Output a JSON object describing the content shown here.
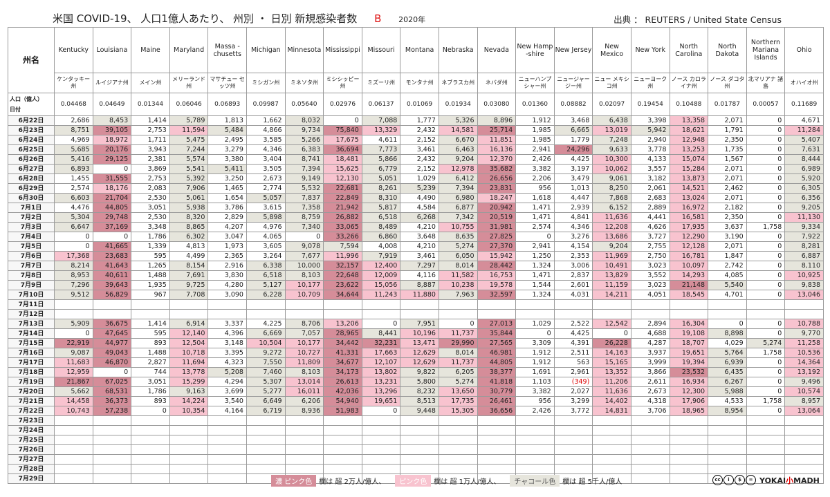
{
  "header": {
    "title": "米国  COVID-19、 人口1億人あたり、 州別 ・ 日別  新規感染者数",
    "mark": "B",
    "year": "2020年",
    "source": "出典 ：  REUTERS  /  United State Census"
  },
  "labels": {
    "state_col": "州名",
    "pop_label": "人口（億人）",
    "date_label": "日付"
  },
  "states": [
    {
      "en": "Kentucky",
      "ja": "ケンタッキー州",
      "pop": "0.04468"
    },
    {
      "en": "Louisiana",
      "ja": "ルイジアナ州",
      "pop": "0.04649"
    },
    {
      "en": "Maine",
      "ja": "メイン州",
      "pop": "0.01344"
    },
    {
      "en": "Maryland",
      "ja": "メリーランド州",
      "pop": "0.06046"
    },
    {
      "en": "Massa -chusetts",
      "ja": "マサチュー セッツ州",
      "pop": "0.06893"
    },
    {
      "en": "Michigan",
      "ja": "ミシガン州",
      "pop": "0.09987"
    },
    {
      "en": "Minnesota",
      "ja": "ミネソタ州",
      "pop": "0.05640"
    },
    {
      "en": "Mississippi",
      "ja": "ミシシッピー州",
      "pop": "0.02976"
    },
    {
      "en": "Missouri",
      "ja": "ミズーリ州",
      "pop": "0.06137"
    },
    {
      "en": "Montana",
      "ja": "モンタナ州",
      "pop": "0.01069"
    },
    {
      "en": "Nebraska",
      "ja": "ネブラスカ州",
      "pop": "0.01934"
    },
    {
      "en": "Nevada",
      "ja": "ネバダ州",
      "pop": "0.03080"
    },
    {
      "en": "New Hamp -shire",
      "ja": "ニューハンプ シャー州",
      "pop": "0.01360"
    },
    {
      "en": "New Jersey",
      "ja": "ニュージャー ジー州",
      "pop": "0.08882"
    },
    {
      "en": "New Mexico",
      "ja": "ニュー メキシコ州",
      "pop": "0.02097"
    },
    {
      "en": "New York",
      "ja": "ニューヨーク州",
      "pop": "0.19454"
    },
    {
      "en": "North Carolina",
      "ja": "ノース カロライナ州",
      "pop": "0.10488"
    },
    {
      "en": "North Dakota",
      "ja": "ノース ダコタ州",
      "pop": "0.01787"
    },
    {
      "en": "Northern Mariana Islands",
      "ja": "北マリアナ 諸島",
      "pop": "0.00057"
    },
    {
      "en": "Ohio",
      "ja": "オハイオ州",
      "pop": "0.11689"
    }
  ],
  "dates": [
    "6月22日",
    "6月23日",
    "6月24日",
    "6月25日",
    "6月26日",
    "6月27日",
    "6月28日",
    "6月29日",
    "6月30日",
    "7月1日",
    "7月2日",
    "7月3日",
    "7月4日",
    "7月5日",
    "7月6日",
    "7月7日",
    "7月8日",
    "7月9日",
    "7月10日",
    "7月11日",
    "7月12日",
    "7月13日",
    "7月14日",
    "7月15日",
    "7月16日",
    "7月17日",
    "7月18日",
    "7月19日",
    "7月20日",
    "7月21日",
    "7月22日",
    "7月23日",
    "7月24日",
    "7月25日",
    "7月26日",
    "7月27日",
    "7月28日",
    "7月29日"
  ],
  "rows": [
    [
      "2,686",
      "8,453",
      "1,414",
      "5,789",
      "1,813",
      "1,662",
      "8,032",
      "0",
      "7,088",
      "1,777",
      "5,326",
      "8,896",
      "1,912",
      "3,468",
      "6,438",
      "3,398",
      "13,358",
      "2,071",
      "0",
      "4,671"
    ],
    [
      "8,751",
      "39,105",
      "2,753",
      "11,594",
      "5,484",
      "4,866",
      "9,734",
      "75,840",
      "13,329",
      "2,432",
      "14,581",
      "25,714",
      "1,985",
      "6,665",
      "13,019",
      "5,942",
      "18,621",
      "1,791",
      "0",
      "11,284"
    ],
    [
      "4,969",
      "18,972",
      "1,711",
      "5,475",
      "2,495",
      "3,585",
      "5,266",
      "17,675",
      "4,611",
      "2,152",
      "6,670",
      "11,851",
      "1,985",
      "1,779",
      "7,248",
      "2,940",
      "12,948",
      "2,350",
      "0",
      "5,407"
    ],
    [
      "5,685",
      "20,176",
      "3,943",
      "7,244",
      "3,279",
      "4,346",
      "6,383",
      "36,694",
      "7,773",
      "3,461",
      "6,463",
      "16,136",
      "2,941",
      "24,296",
      "9,633",
      "3,778",
      "13,253",
      "1,735",
      "0",
      "7,631"
    ],
    [
      "5,416",
      "29,125",
      "2,381",
      "5,574",
      "3,380",
      "3,404",
      "8,741",
      "18,481",
      "5,866",
      "2,432",
      "9,204",
      "12,370",
      "2,426",
      "4,425",
      "10,300",
      "4,133",
      "15,074",
      "1,567",
      "0",
      "8,444"
    ],
    [
      "6,893",
      "0",
      "3,869",
      "5,541",
      "5,411",
      "3,505",
      "7,394",
      "15,625",
      "6,779",
      "2,152",
      "12,978",
      "35,682",
      "3,382",
      "3,197",
      "10,062",
      "3,557",
      "15,284",
      "2,071",
      "0",
      "6,989"
    ],
    [
      "1,455",
      "31,555",
      "2,753",
      "5,392",
      "3,250",
      "2,673",
      "9,149",
      "12,130",
      "5,051",
      "1,029",
      "6,412",
      "26,656",
      "2,206",
      "3,479",
      "9,061",
      "3,182",
      "13,873",
      "2,071",
      "0",
      "5,920"
    ],
    [
      "2,574",
      "18,176",
      "2,083",
      "7,906",
      "1,465",
      "2,774",
      "5,532",
      "22,681",
      "8,261",
      "5,239",
      "7,394",
      "23,831",
      "956",
      "1,013",
      "8,250",
      "2,061",
      "14,521",
      "2,462",
      "0",
      "6,305"
    ],
    [
      "6,603",
      "21,704",
      "2,530",
      "5,061",
      "1,654",
      "5,057",
      "7,837",
      "22,849",
      "8,310",
      "4,490",
      "6,980",
      "18,247",
      "1,618",
      "4,447",
      "7,868",
      "2,683",
      "13,024",
      "2,071",
      "0",
      "6,356"
    ],
    [
      "4,476",
      "44,805",
      "3,051",
      "5,938",
      "3,786",
      "3,615",
      "7,358",
      "21,942",
      "5,817",
      "4,584",
      "6,877",
      "20,942",
      "1,471",
      "2,939",
      "6,152",
      "2,889",
      "16,972",
      "2,182",
      "0",
      "9,205"
    ],
    [
      "5,304",
      "29,748",
      "2,530",
      "8,320",
      "2,829",
      "5,898",
      "8,759",
      "26,882",
      "6,518",
      "6,268",
      "7,342",
      "20,519",
      "1,471",
      "4,841",
      "11,636",
      "4,441",
      "16,581",
      "2,350",
      "0",
      "11,130"
    ],
    [
      "6,647",
      "37,169",
      "3,348",
      "8,865",
      "4,207",
      "4,976",
      "7,340",
      "33,065",
      "8,489",
      "4,210",
      "10,755",
      "31,981",
      "2,574",
      "4,346",
      "12,208",
      "4,626",
      "17,935",
      "3,637",
      "1,758",
      "9,334"
    ],
    [
      "0",
      "0",
      "1,786",
      "6,302",
      "3,047",
      "4,065",
      "0",
      "33,266",
      "6,860",
      "3,648",
      "8,635",
      "27,825",
      "0",
      "3,276",
      "13,686",
      "3,727",
      "12,290",
      "3,190",
      "0",
      "7,922"
    ],
    [
      "0",
      "41,665",
      "1,339",
      "4,813",
      "1,973",
      "3,605",
      "9,078",
      "7,594",
      "4,008",
      "4,210",
      "5,274",
      "27,370",
      "2,941",
      "4,154",
      "9,204",
      "2,755",
      "12,128",
      "2,071",
      "0",
      "8,281"
    ],
    [
      "17,368",
      "23,683",
      "595",
      "4,499",
      "2,365",
      "3,264",
      "7,677",
      "11,996",
      "7,919",
      "3,461",
      "6,050",
      "15,942",
      "1,250",
      "2,353",
      "11,969",
      "2,750",
      "16,781",
      "1,847",
      "0",
      "6,887"
    ],
    [
      "8,214",
      "41,643",
      "1,265",
      "8,154",
      "2,916",
      "6,338",
      "10,000",
      "32,157",
      "12,400",
      "7,297",
      "8,014",
      "28,442",
      "1,324",
      "3,006",
      "10,491",
      "3,023",
      "10,097",
      "2,742",
      "0",
      "8,110"
    ],
    [
      "8,953",
      "40,611",
      "1,488",
      "7,691",
      "3,830",
      "6,518",
      "8,103",
      "22,648",
      "12,009",
      "4,116",
      "11,582",
      "16,753",
      "1,471",
      "2,837",
      "13,829",
      "3,552",
      "14,293",
      "4,085",
      "0",
      "10,925"
    ],
    [
      "7,296",
      "39,643",
      "1,935",
      "9,725",
      "4,280",
      "5,127",
      "10,177",
      "23,622",
      "15,056",
      "8,887",
      "10,238",
      "19,578",
      "1,544",
      "2,601",
      "11,159",
      "3,023",
      "21,148",
      "5,540",
      "0",
      "9,838"
    ],
    [
      "9,512",
      "56,829",
      "967",
      "7,708",
      "3,090",
      "6,228",
      "10,709",
      "34,644",
      "11,243",
      "11,880",
      "7,963",
      "32,597",
      "1,324",
      "4,031",
      "14,211",
      "4,051",
      "18,545",
      "4,701",
      "0",
      "13,046"
    ],
    [
      "",
      "",
      "",
      "",
      "",
      "",
      "",
      "",
      "",
      "",
      "",
      "",
      "",
      "",
      "",
      "",
      "",
      "",
      "",
      ""
    ],
    [
      "",
      "",
      "",
      "",
      "",
      "",
      "",
      "",
      "",
      "",
      "",
      "",
      "",
      "",
      "",
      "",
      "",
      "",
      "",
      ""
    ],
    [
      "5,909",
      "36,675",
      "1,414",
      "6,914",
      "3,337",
      "4,225",
      "8,706",
      "13,206",
      "0",
      "7,951",
      "0",
      "27,013",
      "1,029",
      "2,522",
      "12,542",
      "2,894",
      "16,304",
      "0",
      "0",
      "10,788"
    ],
    [
      "0",
      "47,645",
      "595",
      "12,140",
      "4,396",
      "6,669",
      "7,057",
      "28,965",
      "8,441",
      "10,196",
      "11,737",
      "35,844",
      "0",
      "4,425",
      "0",
      "4,688",
      "19,108",
      "8,898",
      "0",
      "9,770"
    ],
    [
      "22,919",
      "44,977",
      "893",
      "12,504",
      "3,148",
      "10,504",
      "10,177",
      "34,442",
      "32,231",
      "13,471",
      "29,990",
      "27,565",
      "3,309",
      "4,391",
      "26,228",
      "4,287",
      "18,707",
      "4,029",
      "5,274",
      "11,258"
    ],
    [
      "9,087",
      "49,043",
      "1,488",
      "10,718",
      "3,395",
      "9,272",
      "10,727",
      "41,331",
      "17,663",
      "12,629",
      "8,014",
      "46,981",
      "1,912",
      "2,511",
      "14,163",
      "3,937",
      "19,651",
      "5,764",
      "1,758",
      "10,536"
    ],
    [
      "11,683",
      "46,870",
      "2,827",
      "11,694",
      "4,323",
      "7,550",
      "11,809",
      "34,677",
      "12,107",
      "12,629",
      "11,737",
      "44,805",
      "1,912",
      "563",
      "15,165",
      "3,999",
      "19,394",
      "6,939",
      "0",
      "14,364"
    ],
    [
      "12,959",
      "0",
      "744",
      "13,778",
      "5,208",
      "7,460",
      "8,103",
      "34,173",
      "13,802",
      "9,822",
      "6,205",
      "38,377",
      "1,691",
      "2,961",
      "13,352",
      "3,866",
      "23,532",
      "6,435",
      "0",
      "13,192"
    ],
    [
      "21,867",
      "67,025",
      "3,051",
      "15,299",
      "4,294",
      "5,307",
      "13,014",
      "26,613",
      "13,231",
      "5,800",
      "5,274",
      "41,818",
      "1,103",
      "(349)",
      "11,206",
      "2,611",
      "16,934",
      "6,267",
      "0",
      "9,496"
    ],
    [
      "5,662",
      "68,531",
      "1,786",
      "9,163",
      "3,699",
      "5,277",
      "16,011",
      "42,036",
      "13,296",
      "8,232",
      "13,650",
      "30,779",
      "3,382",
      "2,027",
      "11,636",
      "2,673",
      "12,300",
      "5,988",
      "0",
      "10,574"
    ],
    [
      "14,458",
      "36,373",
      "893",
      "14,224",
      "3,540",
      "6,649",
      "6,206",
      "54,940",
      "19,651",
      "8,513",
      "17,735",
      "26,461",
      "956",
      "3,299",
      "14,402",
      "4,318",
      "17,906",
      "4,533",
      "1,758",
      "8,957"
    ],
    [
      "10,743",
      "57,238",
      "0",
      "10,354",
      "4,164",
      "6,719",
      "8,936",
      "51,983",
      "0",
      "9,448",
      "15,305",
      "36,656",
      "2,426",
      "3,772",
      "14,831",
      "3,706",
      "18,965",
      "8,954",
      "0",
      "13,064"
    ],
    [
      "",
      "",
      "",
      "",
      "",
      "",
      "",
      "",
      "",
      "",
      "",
      "",
      "",
      "",
      "",
      "",
      "",
      "",
      "",
      ""
    ],
    [
      "",
      "",
      "",
      "",
      "",
      "",
      "",
      "",
      "",
      "",
      "",
      "",
      "",
      "",
      "",
      "",
      "",
      "",
      "",
      ""
    ],
    [
      "",
      "",
      "",
      "",
      "",
      "",
      "",
      "",
      "",
      "",
      "",
      "",
      "",
      "",
      "",
      "",
      "",
      "",
      "",
      ""
    ],
    [
      "",
      "",
      "",
      "",
      "",
      "",
      "",
      "",
      "",
      "",
      "",
      "",
      "",
      "",
      "",
      "",
      "",
      "",
      "",
      ""
    ],
    [
      "",
      "",
      "",
      "",
      "",
      "",
      "",
      "",
      "",
      "",
      "",
      "",
      "",
      "",
      "",
      "",
      "",
      "",
      "",
      ""
    ],
    [
      "",
      "",
      "",
      "",
      "",
      "",
      "",
      "",
      "",
      "",
      "",
      "",
      "",
      "",
      "",
      "",
      "",
      "",
      "",
      ""
    ],
    [
      "",
      "",
      "",
      "",
      "",
      "",
      "",
      "",
      "",
      "",
      "",
      "",
      "",
      "",
      "",
      "",
      "",
      "",
      "",
      ""
    ]
  ],
  "legend": [
    {
      "swatch": "濃 ピンク色",
      "text": "欄は 超 2万人/億人、",
      "color": "#d58d99"
    },
    {
      "swatch": "ピンク色",
      "text": "欄は 超 1万人/億人、",
      "color": "#f8c3cf"
    },
    {
      "swatch": "チャコール色",
      "text": "欄は 超 5千人/億人",
      "color": "#e6e5dc"
    }
  ],
  "footer": {
    "license_icons": [
      "cc",
      "by",
      "nc",
      "nd"
    ],
    "brand_left": "YOKAI",
    "brand_mid": "小",
    "brand_right": "MADH"
  }
}
